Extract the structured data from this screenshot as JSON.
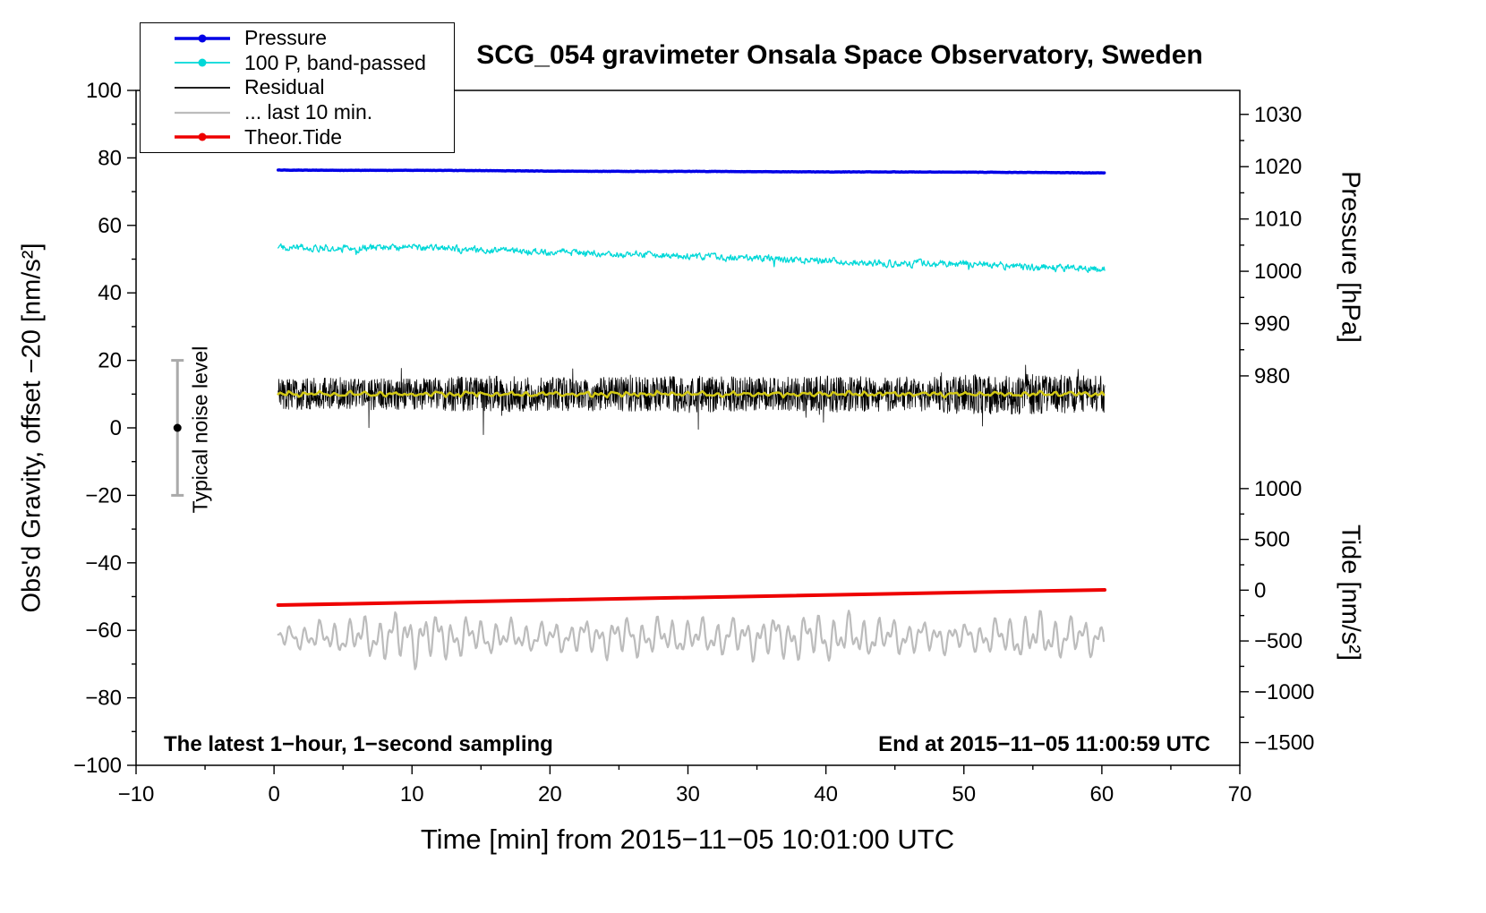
{
  "chart_data": {
    "type": "line",
    "title": "SCG_054 gravimeter Onsala Space Observatory, Sweden",
    "xlabel": "Time [min] from 2015−11−05 10:01:00 UTC",
    "grid": false,
    "legend_position": "top-left",
    "annotations": {
      "sampling": "The latest 1−hour, 1−second sampling",
      "end_time": "End at 2015−11−05 11:00:59 UTC"
    },
    "axes": {
      "x": {
        "label": "Time [min] from 2015−11−05 10:01:00 UTC",
        "lim": [
          -10,
          70
        ],
        "ticks_major": [
          -10,
          0,
          10,
          20,
          30,
          40,
          50,
          60,
          70
        ],
        "tick_minor_step": 5
      },
      "left": {
        "label": "Obs'd Gravity, offset −20 [nm/s²]",
        "lim": [
          -100,
          100
        ],
        "ticks_major": [
          -100,
          -80,
          -60,
          -40,
          -20,
          0,
          20,
          40,
          60,
          80,
          100
        ],
        "tick_minor_step": 10
      },
      "pressure": {
        "label": "Pressure [hPa]",
        "ticks_major": [
          1030,
          1020,
          1010,
          1000,
          990,
          980
        ],
        "tick_minor_step": 5,
        "minor_range": [
          980,
          1030
        ],
        "to_left": {
          "m": 1.55,
          "b": -1503.6
        }
      },
      "tide": {
        "label": "Tide [nm/s²]",
        "ticks_major": [
          1000,
          500,
          0,
          -500,
          -1000,
          -1500
        ],
        "tick_minor_step": 250,
        "minor_range": [
          -1500,
          1000
        ],
        "to_left": {
          "m": 0.0301,
          "b": -48.1
        }
      }
    },
    "noise_bar": {
      "x": -7,
      "center": 0,
      "range": [
        -20,
        20
      ],
      "label": "Typical noise level",
      "color": "#aaaaaa"
    },
    "series": [
      {
        "id": "pressure",
        "name": "Pressure",
        "axis": "pressure",
        "unit": "hPa",
        "color": "#0000e6",
        "width": 3.5,
        "legend": true,
        "marker": true,
        "z": 2,
        "gen": "noisy",
        "seed": 7,
        "step": 0.06,
        "noise": 0.04,
        "smooth": 0.3,
        "x": [
          0.3,
          5,
          10,
          15,
          20,
          25,
          30,
          35,
          40,
          45,
          50,
          55,
          60.2
        ],
        "y": [
          1019.35,
          1019.3,
          1019.3,
          1019.25,
          1019.15,
          1019.1,
          1019.1,
          1019.05,
          1019.0,
          1019.0,
          1018.95,
          1018.9,
          1018.8
        ]
      },
      {
        "id": "band-passed",
        "name": "100 P, band-passed",
        "axis": "left",
        "unit": "nm/s²",
        "color": "#00d8d8",
        "width": 1.3,
        "legend": true,
        "marker": true,
        "z": 1,
        "gen": "noisy",
        "seed": 13,
        "step": 0.05,
        "noise": 1.6,
        "smooth": 0.45,
        "spiky": true,
        "x": [
          0.3,
          5,
          10,
          15,
          20,
          25,
          30,
          35,
          40,
          45,
          50,
          55,
          60.2
        ],
        "y": [
          53.6,
          53.2,
          53.5,
          52.8,
          52.2,
          51.3,
          50.8,
          50.2,
          49.5,
          48.6,
          48.8,
          47.6,
          47.0
        ]
      },
      {
        "id": "residual",
        "name": "Residual",
        "axis": "left",
        "unit": "nm/s²",
        "color": "#000000",
        "width": 0.8,
        "legend": true,
        "marker": false,
        "z": 5,
        "gen": "noisy",
        "seed": 42,
        "step": 0.025,
        "smooth": 0,
        "spiky": true,
        "x": [
          0.3,
          5,
          10,
          15,
          20,
          25,
          30,
          35,
          40,
          45,
          50,
          55,
          60.2
        ],
        "y": [
          10,
          10,
          10,
          10,
          10,
          10,
          10,
          10,
          10,
          10,
          10,
          10,
          10
        ],
        "amp": [
          4.5,
          5,
          4.5,
          5.5,
          5,
          5,
          5.5,
          5,
          5.5,
          5,
          6,
          6,
          5.5
        ]
      },
      {
        "id": "last-10-min",
        "name": "... last 10 min.",
        "axis": "left",
        "unit": "nm/s²",
        "color": "#bcbcbc",
        "width": 2.2,
        "legend": true,
        "marker": false,
        "z": 3,
        "gen": "osc",
        "seed": 5,
        "step": 0.08,
        "x": [
          0.3,
          5,
          10,
          15,
          20,
          25,
          30,
          35,
          40,
          45,
          50,
          55,
          60.2
        ],
        "y": [
          -62,
          -62,
          -62,
          -62,
          -62,
          -62,
          -62,
          -62,
          -62,
          -62,
          -62,
          -62,
          -62
        ],
        "amp": [
          3,
          5,
          8,
          5,
          4,
          6,
          5,
          6,
          7,
          5,
          4,
          7,
          5
        ]
      },
      {
        "id": "theor-tide",
        "name": "Theor.Tide",
        "axis": "tide",
        "unit": "nm/s²",
        "color": "#ee0000",
        "width": 4,
        "legend": true,
        "marker": true,
        "z": 4,
        "gen": "plain",
        "seed": 1,
        "x": [
          0.3,
          60.2
        ],
        "y": [
          -147,
          3
        ]
      },
      {
        "id": "residual-smoothed",
        "name": "Residual (smoothed)",
        "axis": "left",
        "unit": "nm/s²",
        "color": "#d2c814",
        "width": 2.5,
        "legend": false,
        "marker": false,
        "z": 6,
        "gen": "osc",
        "seed": 9,
        "step": 0.15,
        "x": [
          0.3,
          5,
          10,
          15,
          20,
          25,
          30,
          35,
          40,
          45,
          50,
          55,
          60.2
        ],
        "y": [
          10,
          10,
          10,
          10,
          10,
          10,
          10,
          10,
          10,
          10,
          10,
          10,
          10
        ],
        "amp": [
          0.6,
          0.7,
          0.6,
          0.7,
          0.6,
          0.7,
          0.6,
          0.7,
          0.6,
          0.7,
          0.6,
          0.7,
          0.6
        ]
      }
    ]
  }
}
